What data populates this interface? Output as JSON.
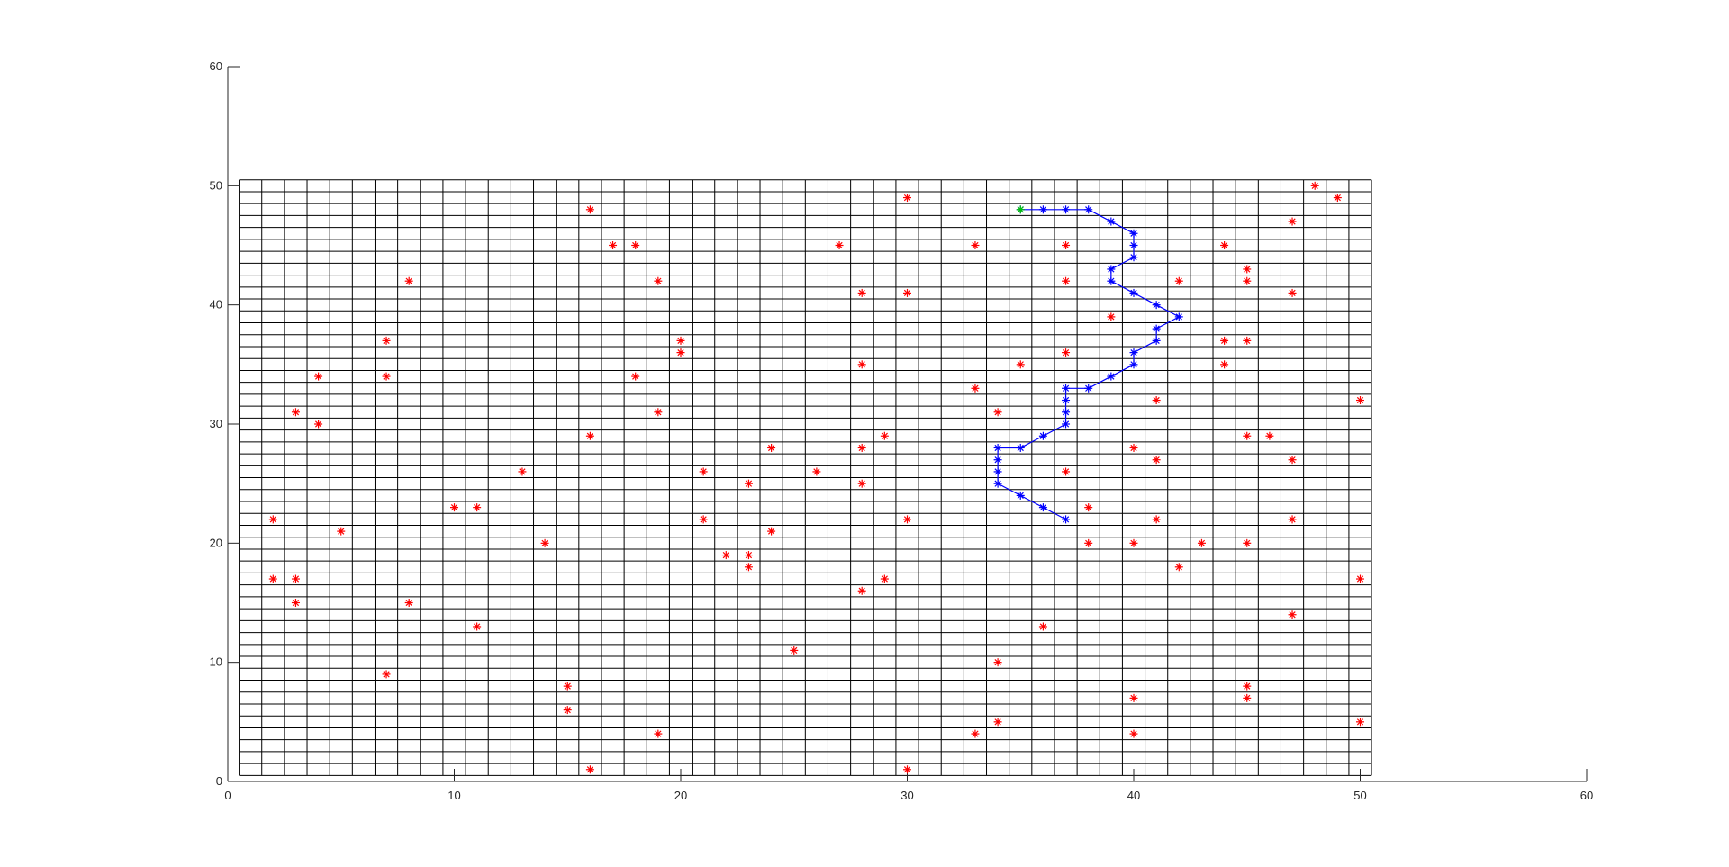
{
  "chart_data": {
    "type": "scatter",
    "xlim": [
      0,
      60
    ],
    "ylim": [
      0,
      60
    ],
    "x_ticks": [
      0,
      10,
      20,
      30,
      40,
      50,
      60
    ],
    "y_ticks": [
      0,
      10,
      20,
      30,
      40,
      50,
      60
    ],
    "x_tick_labels": [
      "0",
      "10",
      "20",
      "30",
      "40",
      "50",
      "60"
    ],
    "y_tick_labels": [
      "0",
      "10",
      "20",
      "30",
      "40",
      "50",
      "60"
    ],
    "grid": {
      "color": "#000000",
      "x_range": [
        0.5,
        50.5
      ],
      "y_range": [
        0.5,
        50.5
      ],
      "vertical_lines_x": [
        0.5,
        1.5,
        2.5,
        3.5,
        4.5,
        5.5,
        6.5,
        7.5,
        8.5,
        9.5,
        10.5,
        11.5,
        12.5,
        13.5,
        14.5,
        15.5,
        16.5,
        17.5,
        18.5,
        19.5,
        20.5,
        21.5,
        22.5,
        23.5,
        24.5,
        25.5,
        26.5,
        27.5,
        28.5,
        29.5,
        30.5,
        31.5,
        32.5,
        33.5,
        34.5,
        35.5,
        36.5,
        37.5,
        38.5,
        39.5,
        40.5,
        41.5,
        42.5,
        43.5,
        44.5,
        45.5,
        46.5,
        47.5,
        48.5,
        49.5,
        50.5
      ],
      "horizontal_lines_y": [
        0.5,
        1.5,
        2.5,
        3.5,
        4.5,
        5.5,
        6.5,
        7.5,
        8.5,
        9.5,
        10.5,
        11.5,
        12.5,
        13.5,
        14.5,
        15.5,
        16.5,
        17.5,
        18.5,
        19.5,
        20.5,
        21.5,
        22.5,
        23.5,
        24.5,
        25.5,
        26.5,
        27.5,
        28.5,
        29.5,
        30.5,
        31.5,
        32.5,
        33.5,
        34.5,
        35.5,
        36.5,
        37.5,
        38.5,
        39.5,
        40.5,
        41.5,
        42.5,
        43.5,
        44.5,
        45.5,
        46.5,
        47.5,
        48.5,
        49.5,
        50.5
      ]
    },
    "series": [
      {
        "role": "obstacles",
        "marker": "*",
        "color": "#ff0000",
        "points": [
          [
            48,
            50
          ],
          [
            49,
            49
          ],
          [
            30,
            49
          ],
          [
            16,
            48
          ],
          [
            47,
            47
          ],
          [
            17,
            45
          ],
          [
            18,
            45
          ],
          [
            27,
            45
          ],
          [
            33,
            45
          ],
          [
            37,
            45
          ],
          [
            44,
            45
          ],
          [
            45,
            43
          ],
          [
            8,
            42
          ],
          [
            19,
            42
          ],
          [
            37,
            42
          ],
          [
            42,
            42
          ],
          [
            45,
            42
          ],
          [
            28,
            41
          ],
          [
            30,
            41
          ],
          [
            47,
            41
          ],
          [
            39,
            39
          ],
          [
            7,
            37
          ],
          [
            20,
            37
          ],
          [
            44,
            37
          ],
          [
            45,
            37
          ],
          [
            20,
            36
          ],
          [
            37,
            36
          ],
          [
            28,
            35
          ],
          [
            35,
            35
          ],
          [
            44,
            35
          ],
          [
            4,
            34
          ],
          [
            7,
            34
          ],
          [
            18,
            34
          ],
          [
            33,
            33
          ],
          [
            41,
            32
          ],
          [
            50,
            32
          ],
          [
            3,
            31
          ],
          [
            19,
            31
          ],
          [
            34,
            31
          ],
          [
            4,
            30
          ],
          [
            16,
            29
          ],
          [
            29,
            29
          ],
          [
            45,
            29
          ],
          [
            46,
            29
          ],
          [
            24,
            28
          ],
          [
            28,
            28
          ],
          [
            40,
            28
          ],
          [
            41,
            27
          ],
          [
            47,
            27
          ],
          [
            13,
            26
          ],
          [
            21,
            26
          ],
          [
            26,
            26
          ],
          [
            37,
            26
          ],
          [
            23,
            25
          ],
          [
            28,
            25
          ],
          [
            10,
            23
          ],
          [
            11,
            23
          ],
          [
            38,
            23
          ],
          [
            2,
            22
          ],
          [
            21,
            22
          ],
          [
            30,
            22
          ],
          [
            41,
            22
          ],
          [
            47,
            22
          ],
          [
            5,
            21
          ],
          [
            24,
            21
          ],
          [
            14,
            20
          ],
          [
            38,
            20
          ],
          [
            40,
            20
          ],
          [
            43,
            20
          ],
          [
            45,
            20
          ],
          [
            22,
            19
          ],
          [
            23,
            19
          ],
          [
            23,
            18
          ],
          [
            42,
            18
          ],
          [
            2,
            17
          ],
          [
            3,
            17
          ],
          [
            29,
            17
          ],
          [
            50,
            17
          ],
          [
            28,
            16
          ],
          [
            3,
            15
          ],
          [
            8,
            15
          ],
          [
            47,
            14
          ],
          [
            11,
            13
          ],
          [
            36,
            13
          ],
          [
            25,
            11
          ],
          [
            34,
            10
          ],
          [
            7,
            9
          ],
          [
            15,
            8
          ],
          [
            45,
            8
          ],
          [
            40,
            7
          ],
          [
            45,
            7
          ],
          [
            15,
            6
          ],
          [
            34,
            5
          ],
          [
            50,
            5
          ],
          [
            19,
            4
          ],
          [
            33,
            4
          ],
          [
            40,
            4
          ],
          [
            16,
            1
          ],
          [
            30,
            1
          ]
        ]
      },
      {
        "role": "path",
        "marker": "*",
        "line": true,
        "color": "#0000ff",
        "points": [
          [
            35,
            48
          ],
          [
            36,
            48
          ],
          [
            37,
            48
          ],
          [
            38,
            48
          ],
          [
            39,
            47
          ],
          [
            40,
            46
          ],
          [
            40,
            45
          ],
          [
            40,
            44
          ],
          [
            39,
            43
          ],
          [
            39,
            42
          ],
          [
            40,
            41
          ],
          [
            41,
            40
          ],
          [
            42,
            39
          ],
          [
            41,
            38
          ],
          [
            41,
            37
          ],
          [
            40,
            36
          ],
          [
            40,
            35
          ],
          [
            39,
            34
          ],
          [
            38,
            33
          ],
          [
            37,
            33
          ],
          [
            37,
            32
          ],
          [
            37,
            31
          ],
          [
            37,
            30
          ],
          [
            36,
            29
          ],
          [
            35,
            28
          ],
          [
            34,
            28
          ],
          [
            34,
            27
          ],
          [
            34,
            26
          ],
          [
            34,
            25
          ],
          [
            35,
            24
          ],
          [
            36,
            23
          ],
          [
            37,
            22
          ]
        ]
      },
      {
        "role": "start",
        "marker": "*",
        "color": "#00c800",
        "points": [
          [
            35,
            48
          ]
        ]
      }
    ]
  }
}
